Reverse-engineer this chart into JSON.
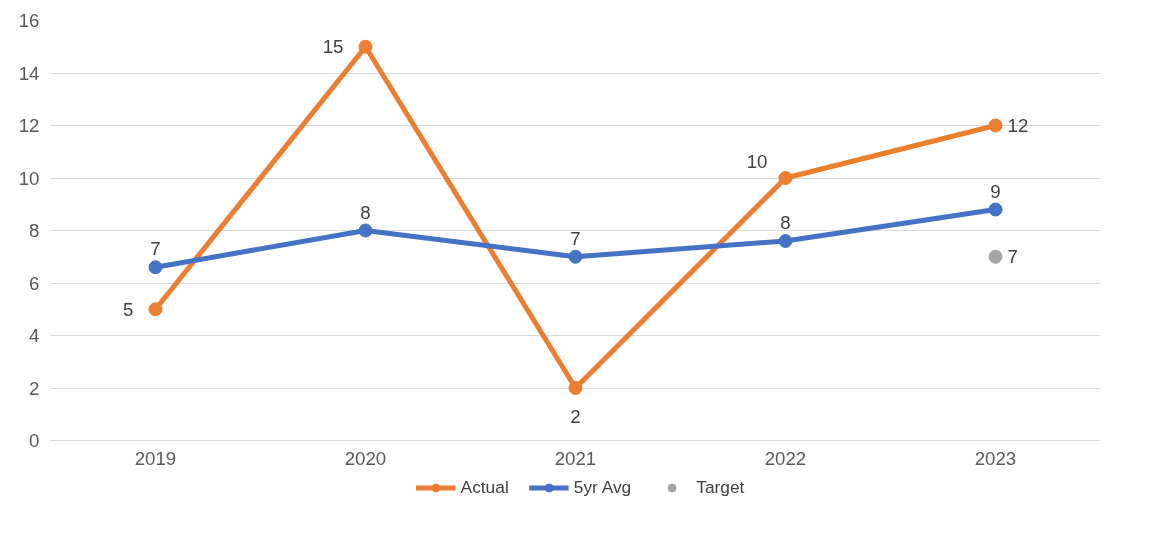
{
  "chart_data": {
    "type": "line",
    "categories": [
      "2019",
      "2020",
      "2021",
      "2022",
      "2023"
    ],
    "series": [
      {
        "name": "Actual",
        "color": "#ed7d31",
        "values": [
          5,
          15,
          2,
          10,
          12
        ],
        "value_labels": [
          "5",
          "15",
          "2",
          "10",
          "12"
        ]
      },
      {
        "name": "5yr Avg",
        "color": "#4472c4",
        "values": [
          6.6,
          8,
          7,
          7.6,
          8.8
        ],
        "value_labels": [
          "7",
          "8",
          "7",
          "8",
          "9"
        ]
      },
      {
        "name": "Target",
        "type": "scatter",
        "color": "#a5a5a5",
        "values": [
          null,
          null,
          null,
          null,
          7
        ],
        "value_labels": [
          null,
          null,
          null,
          null,
          "7"
        ]
      }
    ],
    "ylim": [
      0,
      16
    ],
    "yticks": [
      0,
      2,
      4,
      6,
      8,
      10,
      12,
      14,
      16
    ],
    "grid": "y",
    "legend": "bottom",
    "marker": "circle",
    "line_style": "solid"
  }
}
